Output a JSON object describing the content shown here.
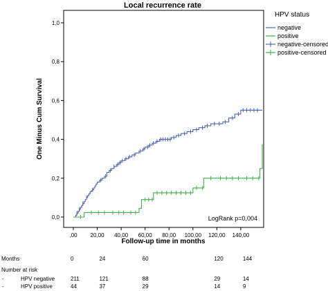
{
  "chart_data": {
    "type": "line",
    "title": "Local recurrence rate",
    "xlabel": "Follow-up time in months",
    "ylabel": "One Minus Cum Survival",
    "xlim": [
      0,
      158
    ],
    "ylim": [
      0,
      1.0
    ],
    "x_ticks": [
      ",00",
      "20,00",
      "40,00",
      "60,00",
      "80,00",
      "100,00",
      "120,00",
      "140,00"
    ],
    "x_tick_values": [
      0,
      20,
      40,
      60,
      80,
      100,
      120,
      140
    ],
    "y_ticks": [
      "0,0",
      "0,2",
      "0,4",
      "0,6",
      "0,8",
      "1,0"
    ],
    "y_tick_values": [
      0,
      0.2,
      0.4,
      0.6,
      0.8,
      1.0
    ],
    "legend": {
      "title": "HPV status",
      "position": "right",
      "entries": [
        "negative",
        "positive",
        "negative-censored",
        "positive-censored"
      ]
    },
    "annotation": "LogRank p=0,004",
    "series": [
      {
        "name": "negative",
        "color": "#4a62b0",
        "x": [
          0,
          2,
          3,
          4,
          5,
          6,
          7,
          8,
          9,
          10,
          11,
          12,
          13,
          14,
          15,
          16,
          17,
          18,
          19,
          20,
          22,
          24,
          26,
          28,
          30,
          32,
          34,
          36,
          38,
          40,
          43,
          46,
          49,
          52,
          55,
          58,
          60,
          63,
          66,
          69,
          72,
          75,
          78,
          82,
          86,
          90,
          95,
          100,
          105,
          110,
          115,
          120,
          125,
          130,
          135,
          140,
          147,
          158
        ],
        "y": [
          0,
          0.01,
          0.02,
          0.03,
          0.04,
          0.05,
          0.06,
          0.07,
          0.08,
          0.09,
          0.1,
          0.11,
          0.12,
          0.13,
          0.135,
          0.14,
          0.15,
          0.16,
          0.17,
          0.18,
          0.19,
          0.2,
          0.21,
          0.23,
          0.24,
          0.25,
          0.26,
          0.27,
          0.28,
          0.29,
          0.3,
          0.31,
          0.32,
          0.33,
          0.34,
          0.35,
          0.36,
          0.37,
          0.38,
          0.39,
          0.4,
          0.4,
          0.4,
          0.41,
          0.42,
          0.43,
          0.44,
          0.45,
          0.46,
          0.47,
          0.48,
          0.48,
          0.49,
          0.51,
          0.53,
          0.55,
          0.55,
          0.55
        ]
      },
      {
        "name": "positive",
        "color": "#3fae49",
        "x": [
          0,
          5,
          9,
          44,
          55,
          57,
          67,
          100,
          102,
          109,
          156,
          157,
          158
        ],
        "y": [
          0,
          0,
          0.023,
          0.023,
          0.045,
          0.09,
          0.125,
          0.15,
          0.15,
          0.2,
          0.25,
          0.25,
          0.375
        ]
      }
    ],
    "censored": [
      {
        "series": "negative",
        "x": [
          3,
          5,
          8,
          11,
          16,
          23,
          27,
          31,
          34,
          37,
          39,
          41,
          44,
          47,
          51,
          56,
          59,
          62,
          64,
          67,
          70,
          73,
          75,
          77,
          79,
          81,
          84,
          88,
          93,
          98,
          103,
          108,
          112,
          118,
          122,
          127,
          133,
          138,
          142,
          145,
          148,
          151,
          154
        ]
      },
      {
        "series": "positive",
        "x": [
          6,
          15,
          21,
          26,
          33,
          38,
          42,
          48,
          52,
          60,
          63,
          66,
          70,
          74,
          78,
          82,
          86,
          90,
          94,
          98,
          103,
          108,
          115,
          123,
          128,
          133,
          138,
          145,
          150,
          155
        ]
      }
    ]
  },
  "risk_table": {
    "months_label": "Months",
    "months": [
      "0",
      "24",
      "60",
      "120",
      "144"
    ],
    "month_values": [
      0,
      24,
      60,
      120,
      144
    ],
    "header": "Number at risk",
    "rows": [
      {
        "dash": "-",
        "label": "HPV negative",
        "values": [
          "211",
          "121",
          "88",
          "29",
          "14"
        ]
      },
      {
        "dash": "-",
        "label": "HPV positive",
        "values": [
          "44",
          "37",
          "29",
          "14",
          "9"
        ]
      }
    ]
  }
}
